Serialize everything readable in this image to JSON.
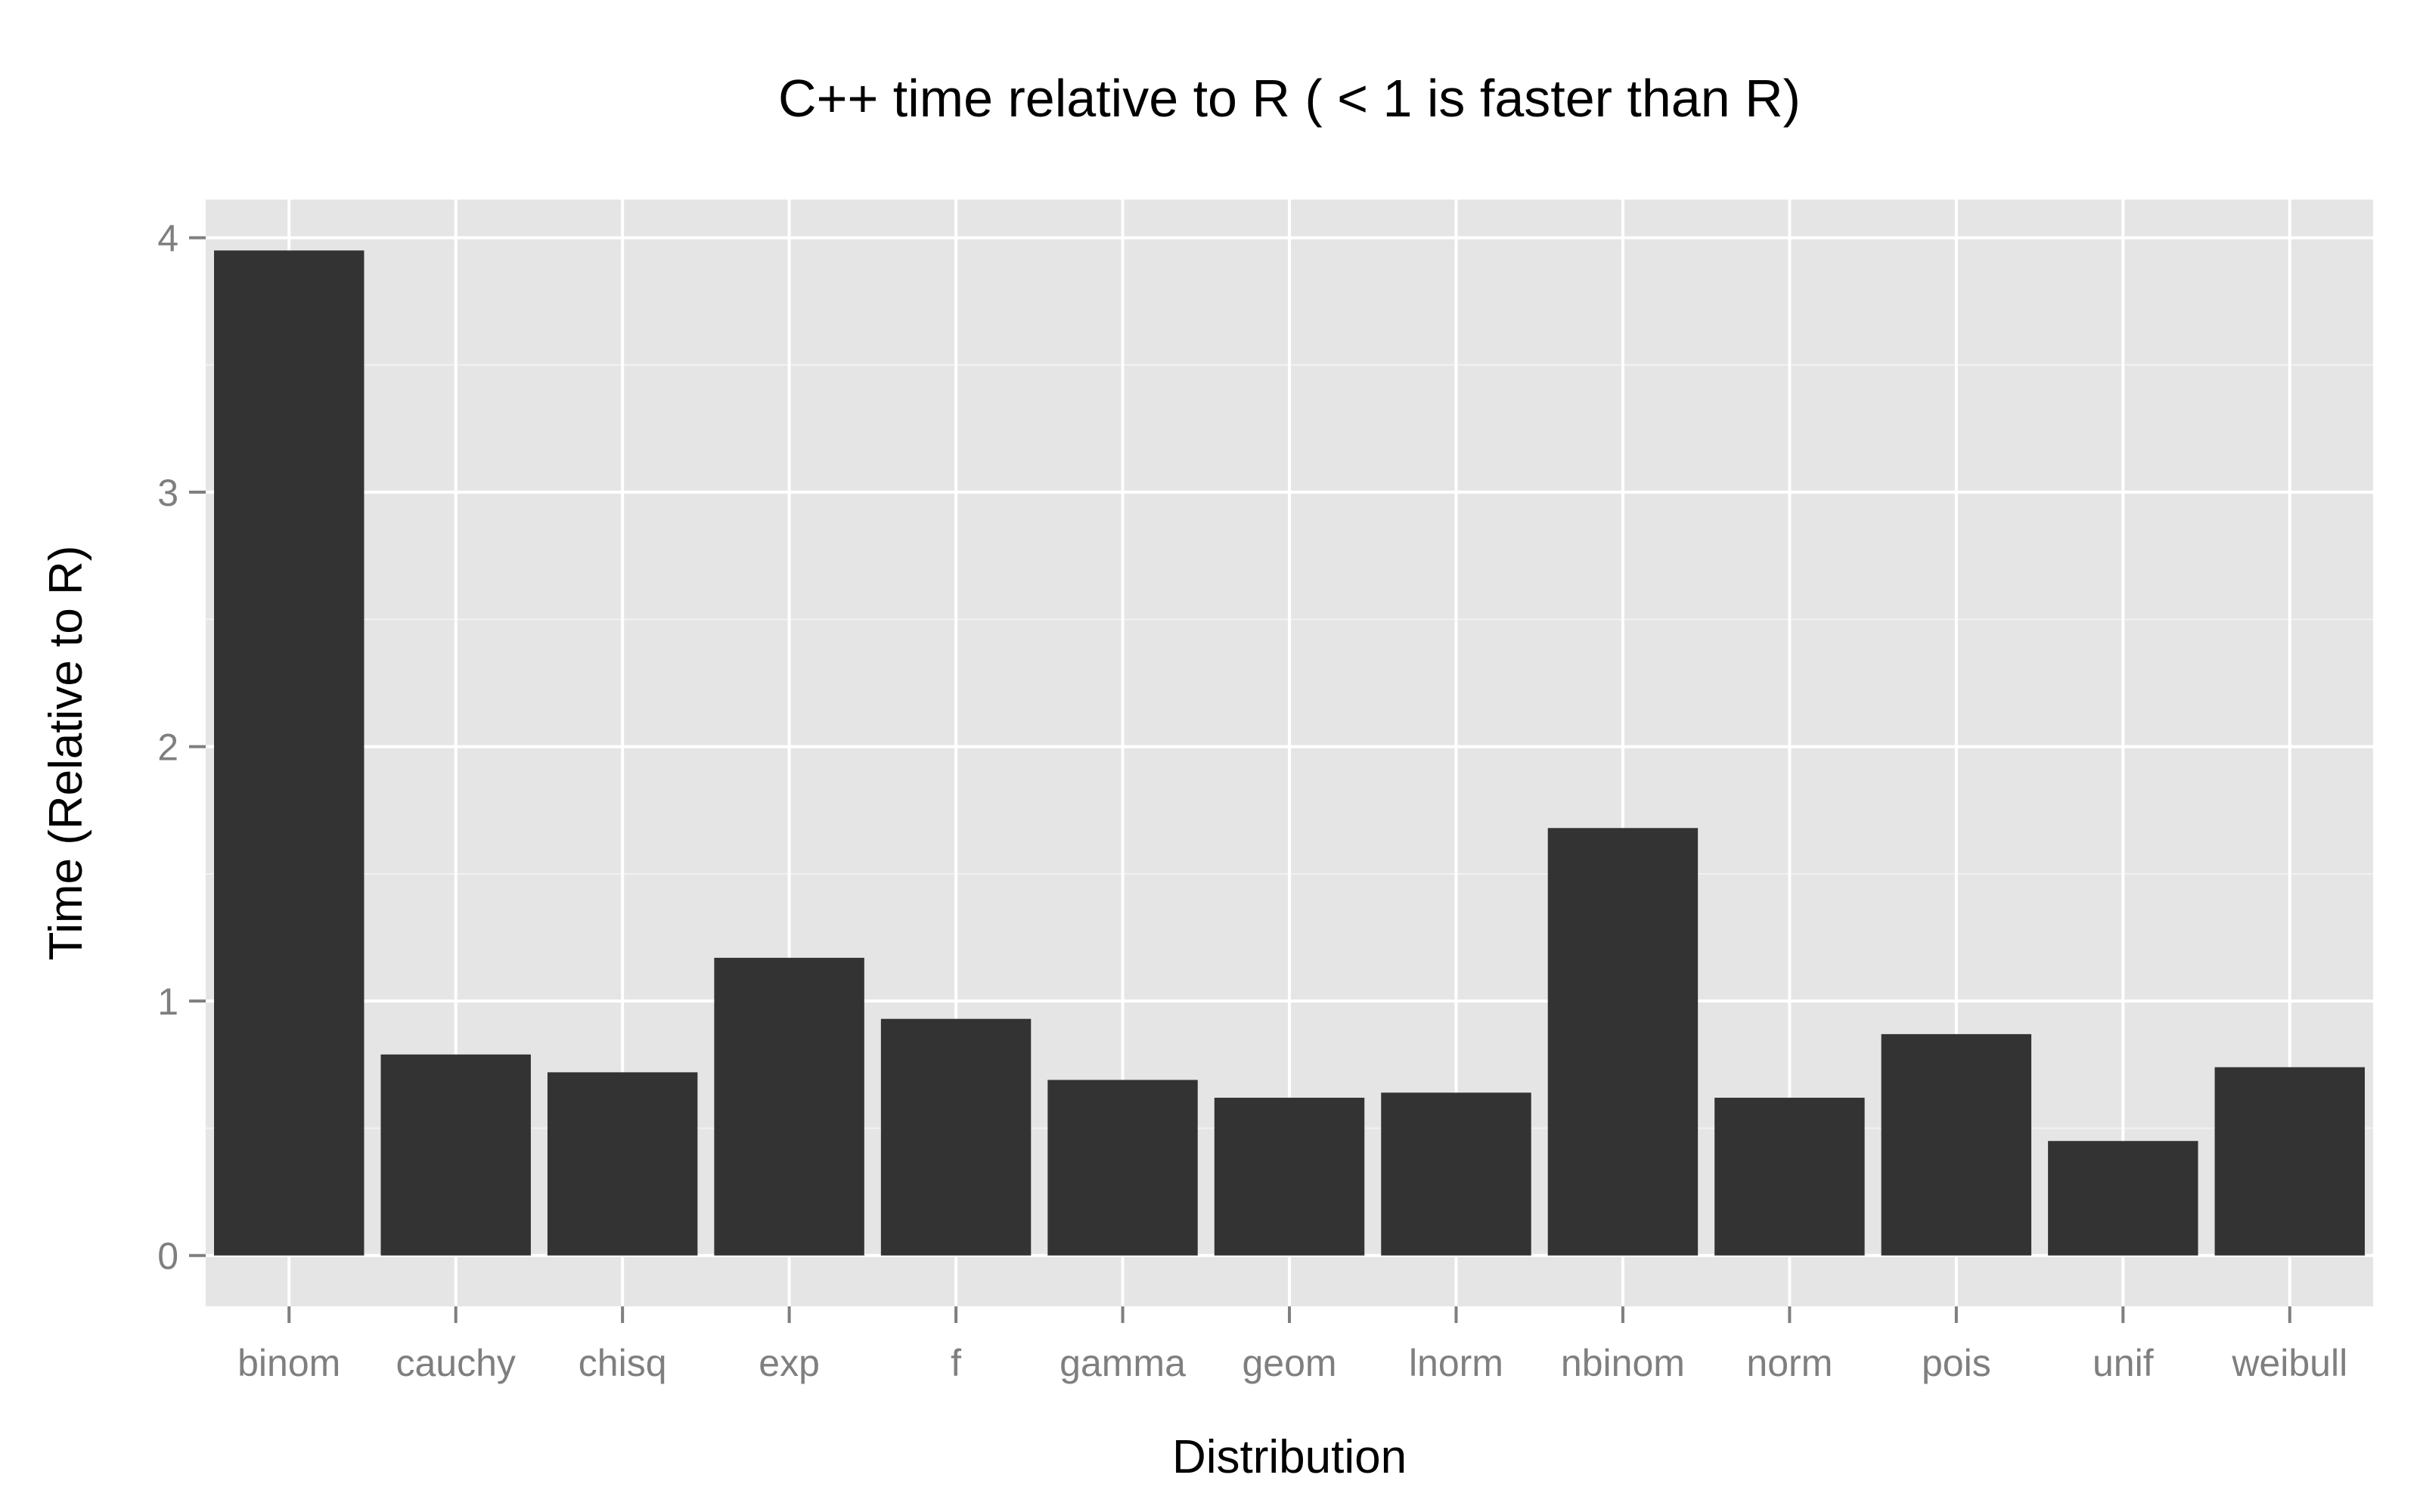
{
  "chart_data": {
    "type": "bar",
    "title": "C++ time relative to R ( < 1 is faster than R)",
    "xlabel": "Distribution",
    "ylabel": "Time (Relative to R)",
    "categories": [
      "binom",
      "cauchy",
      "chisq",
      "exp",
      "f",
      "gamma",
      "geom",
      "lnorm",
      "nbinom",
      "norm",
      "pois",
      "unif",
      "weibull"
    ],
    "values": [
      3.95,
      0.79,
      0.72,
      1.17,
      0.93,
      0.69,
      0.62,
      0.64,
      1.68,
      0.62,
      0.87,
      0.45,
      0.74
    ],
    "ylim": [
      -0.2,
      4.15
    ],
    "yticks": [
      0,
      1,
      2,
      3,
      4
    ],
    "grid": true,
    "legend": "none",
    "colors": {
      "panel_background": "#e5e5e5",
      "grid_major": "#ffffff",
      "grid_minor": "#f2f2f2",
      "bar_fill": "#333333",
      "tick_mark": "#7f7f7f"
    }
  }
}
